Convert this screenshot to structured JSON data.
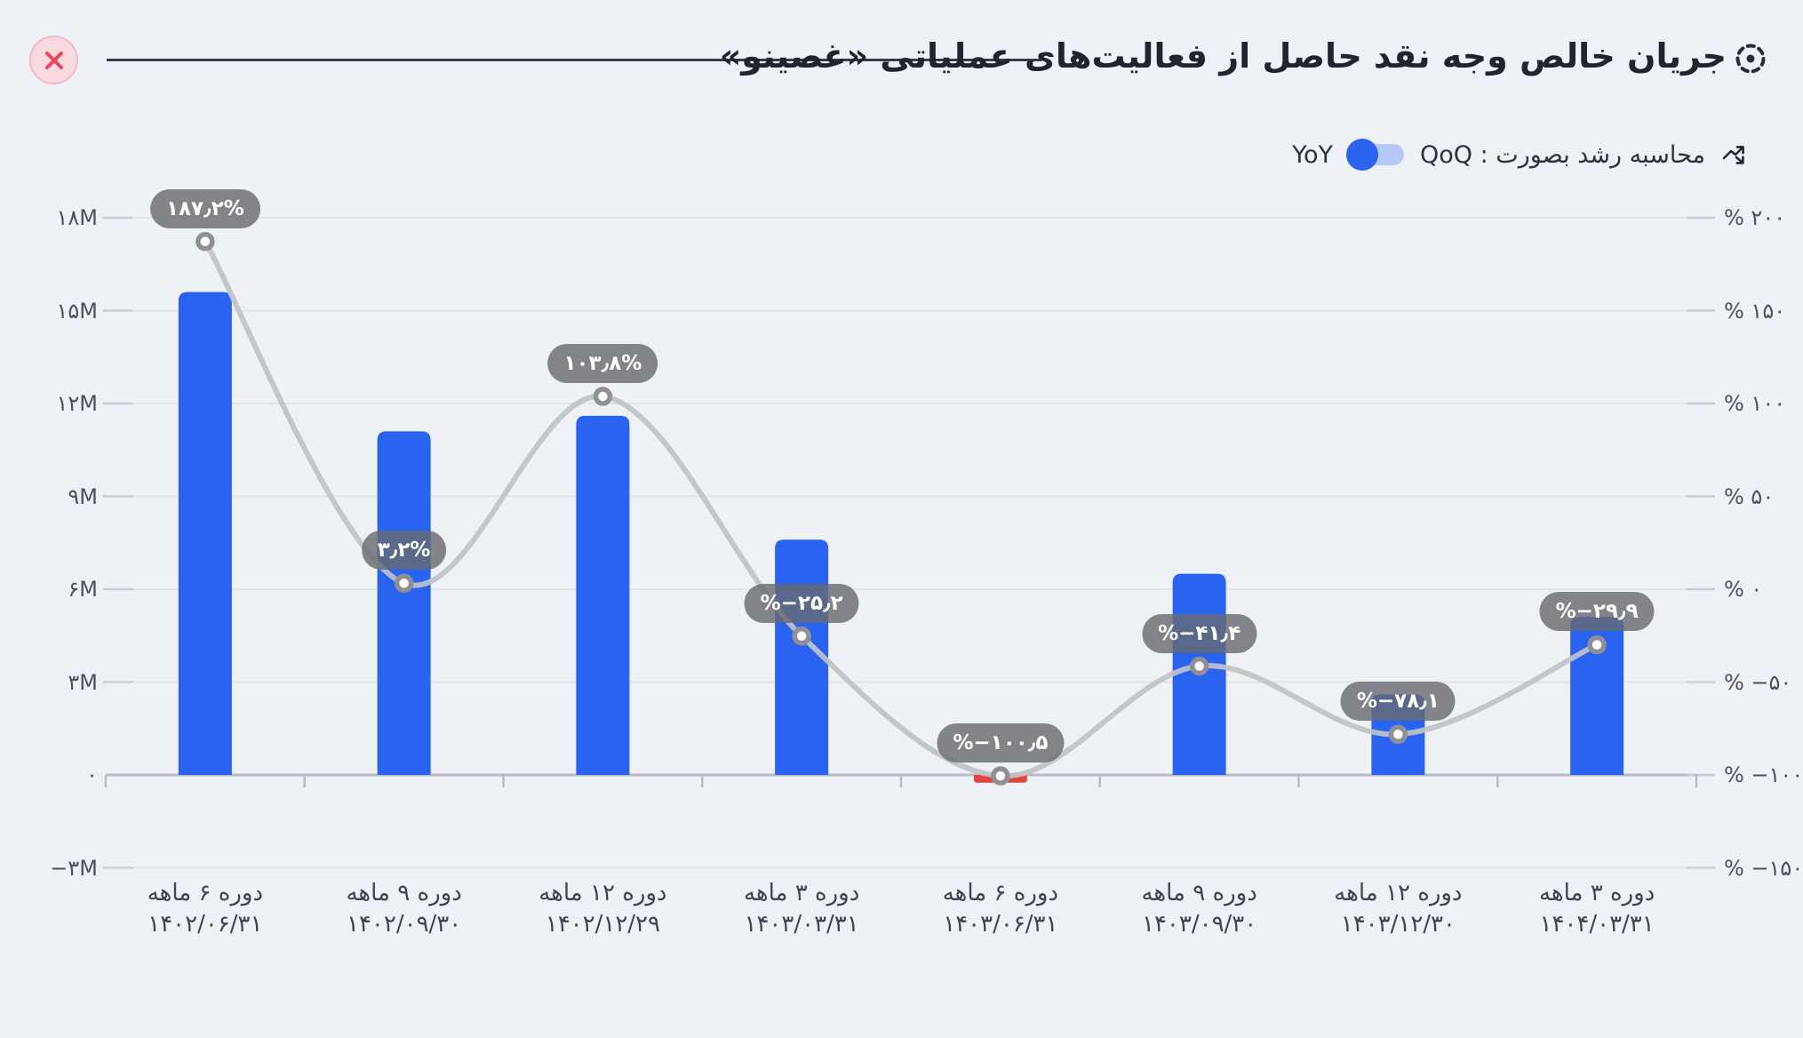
{
  "page": {
    "background": "#eef1f6"
  },
  "header": {
    "title_main": "جریان خالص وجه نقد حاصل از فعالیت‌های عملیاتی",
    "title_emphasis": "«غصینو»"
  },
  "controls": {
    "growth_mode_label": "محاسبه رشد بصورت :",
    "qoq_label": "QoQ",
    "yoy_label": "YoY",
    "selected": "YoY"
  },
  "chart_data": {
    "type": "bar",
    "combo": "bar+line",
    "categories": [
      {
        "period": "دوره ۶ ماهه",
        "date": "۱۴۰۲/۰۶/۳۱"
      },
      {
        "period": "دوره ۹ ماهه",
        "date": "۱۴۰۲/۰۹/۳۰"
      },
      {
        "period": "دوره ۱۲ ماهه",
        "date": "۱۴۰۲/۱۲/۲۹"
      },
      {
        "period": "دوره ۳ ماهه",
        "date": "۱۴۰۳/۰۳/۳۱"
      },
      {
        "period": "دوره ۶ ماهه",
        "date": "۱۴۰۳/۰۶/۳۱"
      },
      {
        "period": "دوره ۹ ماهه",
        "date": "۱۴۰۳/۰۹/۳۰"
      },
      {
        "period": "دوره ۱۲ ماهه",
        "date": "۱۴۰۳/۱۲/۳۰"
      },
      {
        "period": "دوره ۳ ماهه",
        "date": "۱۴۰۴/۰۳/۳۱"
      }
    ],
    "bar_series": {
      "unit": "M",
      "values": [
        15.6,
        11.1,
        11.6,
        7.6,
        -0.25,
        6.5,
        2.6,
        5.1
      ]
    },
    "line_series": {
      "unit": "%",
      "values": [
        187.2,
        3.2,
        103.8,
        -25.2,
        -100.5,
        -41.4,
        -78.1,
        -29.9
      ],
      "point_labels": [
        "۱۸۷٫۲%",
        "۳٫۲%",
        "۱۰۳٫۸%",
        "%−۲۵٫۲",
        "%−۱۰۰٫۵",
        "%−۴۱٫۴",
        "%−۷۸٫۱",
        "%−۲۹٫۹"
      ]
    },
    "y_axis_left": {
      "unit": "M",
      "tick_values": [
        18,
        15,
        12,
        9,
        6,
        3,
        0,
        -3
      ],
      "tick_labels": [
        "۱۸M",
        "۱۵M",
        "۱۲M",
        "۹M",
        "۶M",
        "۳M",
        "۰",
        "−۳M"
      ]
    },
    "y_axis_right": {
      "unit": "%",
      "tick_values": [
        200,
        150,
        100,
        50,
        0,
        -50,
        -100,
        -150
      ],
      "tick_labels": [
        "% ۲۰۰",
        "% ۱۵۰",
        "% ۱۰۰",
        "% ۵۰",
        "% ۰",
        "% −۵۰",
        "% −۱۰۰",
        "% −۱۵۰"
      ]
    },
    "grid": true,
    "legend_position": "none",
    "colors": {
      "bar_positive": "#2a63f0",
      "bar_negative": "#e2443e",
      "line": "#c0c2c7",
      "marker_ring": "#8f9095",
      "marker_fill": "#ffffff",
      "pill_bg": "rgba(103,105,111,0.8)",
      "pill_text": "#ffffff",
      "gridline": "#e1e4eb",
      "axis_line": "#b8bcc4",
      "toggle_knob": "#2c63f1",
      "toggle_track": "#b7c9f7",
      "close_accent": "#e8465f"
    }
  }
}
